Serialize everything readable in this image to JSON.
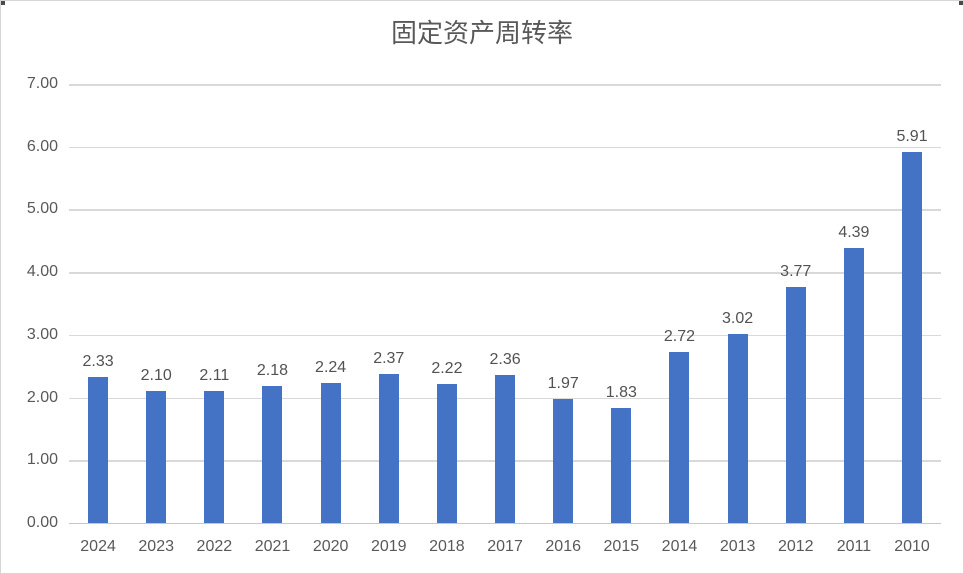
{
  "chart_data": {
    "type": "bar",
    "title": "固定资产周转率",
    "categories": [
      "2024",
      "2023",
      "2022",
      "2021",
      "2020",
      "2019",
      "2018",
      "2017",
      "2016",
      "2015",
      "2014",
      "2013",
      "2012",
      "2011",
      "2010"
    ],
    "values": [
      2.33,
      2.1,
      2.11,
      2.18,
      2.24,
      2.37,
      2.22,
      2.36,
      1.97,
      1.83,
      2.72,
      3.02,
      3.77,
      4.39,
      5.91
    ],
    "value_labels": [
      "2.33",
      "2.10",
      "2.11",
      "2.18",
      "2.24",
      "2.37",
      "2.22",
      "2.36",
      "1.97",
      "1.83",
      "2.72",
      "3.02",
      "3.77",
      "4.39",
      "5.91"
    ],
    "y_ticks": [
      "7.00",
      "6.00",
      "5.00",
      "4.00",
      "3.00",
      "2.00",
      "1.00",
      "0.00"
    ],
    "ylim": [
      0,
      7
    ],
    "xlabel": "",
    "ylabel": "",
    "grid": true,
    "legend_position": "none",
    "colors": {
      "bar": "#4472c4",
      "gridline": "#d9d9d9",
      "axis_line": "#c6c6c6",
      "tick_label": "#595959",
      "value_label": "#525252",
      "title": "#595959"
    }
  }
}
